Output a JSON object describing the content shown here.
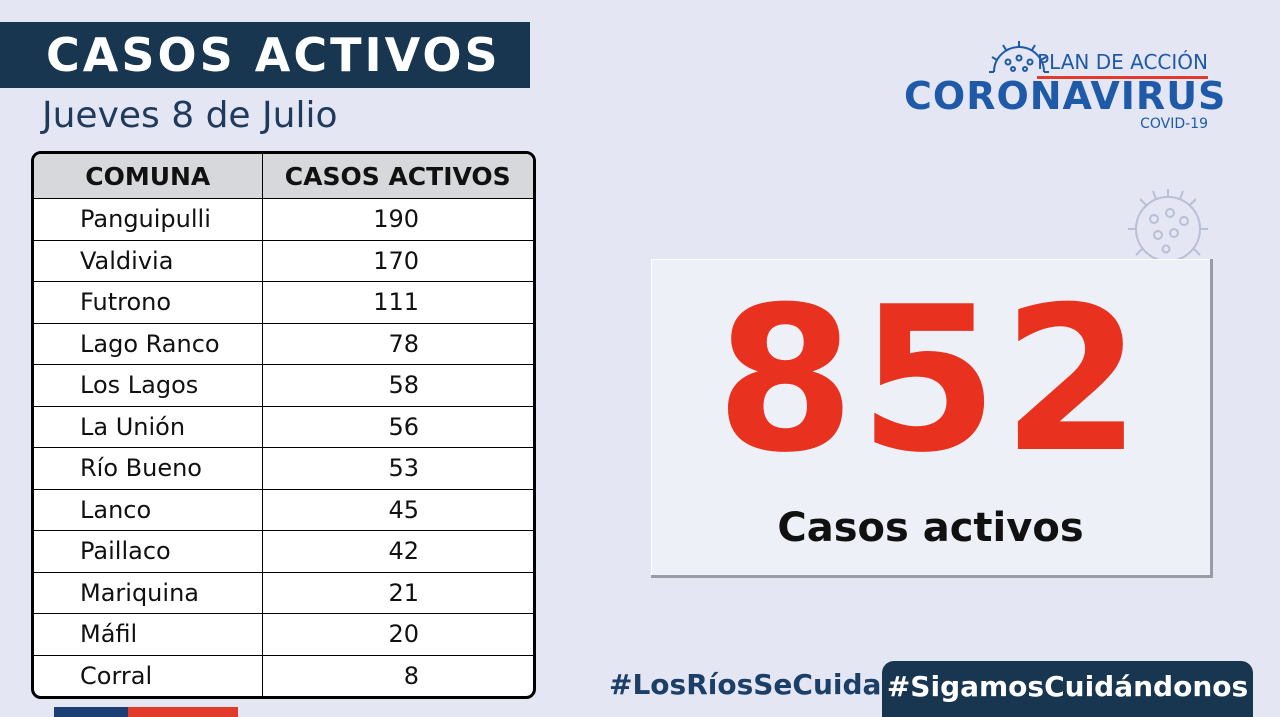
{
  "header": {
    "title": "CASOS ACTIVOS",
    "date": "Jueves 8 de Julio"
  },
  "logo": {
    "plan": "PLAN DE ACCIÓN",
    "main": "CORONAVIRUS",
    "sub": "COVID-19"
  },
  "table": {
    "headers": [
      "COMUNA",
      "CASOS ACTIVOS"
    ],
    "rows": [
      {
        "comuna": "Panguipulli",
        "casos": "190"
      },
      {
        "comuna": "Valdivia",
        "casos": "170"
      },
      {
        "comuna": "Futrono",
        "casos": "111"
      },
      {
        "comuna": "Lago Ranco",
        "casos": "78"
      },
      {
        "comuna": "Los Lagos",
        "casos": "58"
      },
      {
        "comuna": "La Unión",
        "casos": "56"
      },
      {
        "comuna": "Río Bueno",
        "casos": "53"
      },
      {
        "comuna": "Lanco",
        "casos": "45"
      },
      {
        "comuna": "Paillaco",
        "casos": "42"
      },
      {
        "comuna": "Mariquina",
        "casos": "21"
      },
      {
        "comuna": "Máfil",
        "casos": "20"
      },
      {
        "comuna": "Corral",
        "casos": "8"
      }
    ]
  },
  "summary": {
    "total": "852",
    "label": "Casos activos"
  },
  "hashtags": {
    "first": "#LosRíosSeCuida",
    "second": "#SigamosCuidándonos"
  },
  "colors": {
    "background": "#e4e6f4",
    "navy": "#18364f",
    "accent_red": "#e8321f",
    "logo_blue": "#1e5aa8"
  },
  "icons": [
    "virus-icon"
  ]
}
